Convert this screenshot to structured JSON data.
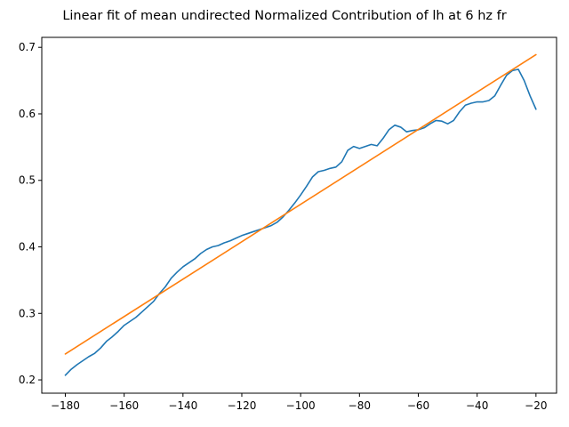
{
  "chart_data": {
    "type": "line",
    "title": "Linear fit of mean undirected Normalized Contribution of lh at 6 hz fr",
    "xlabel": "",
    "ylabel": "",
    "xlim": [
      -188,
      -13
    ],
    "ylim": [
      0.18,
      0.715
    ],
    "xticks": [
      -180,
      -160,
      -140,
      -120,
      -100,
      -80,
      -60,
      -40,
      -20
    ],
    "yticks": [
      0.2,
      0.3,
      0.4,
      0.5,
      0.6,
      0.7
    ],
    "xtick_labels": [
      "−180",
      "−160",
      "−140",
      "−120",
      "−100",
      "−80",
      "−60",
      "−40",
      "−20"
    ],
    "ytick_labels": [
      "0.2",
      "0.3",
      "0.4",
      "0.5",
      "0.6",
      "0.7"
    ],
    "grid": false,
    "series": [
      {
        "color": "#1f77b4",
        "x": [
          -180,
          -178,
          -176,
          -174,
          -172,
          -170,
          -168,
          -166,
          -164,
          -162,
          -160,
          -158,
          -156,
          -154,
          -152,
          -150,
          -148,
          -146,
          -144,
          -142,
          -140,
          -138,
          -136,
          -134,
          -132,
          -130,
          -128,
          -126,
          -124,
          -122,
          -120,
          -118,
          -116,
          -114,
          -112,
          -110,
          -108,
          -106,
          -104,
          -102,
          -100,
          -98,
          -96,
          -94,
          -92,
          -90,
          -88,
          -86,
          -84,
          -82,
          -80,
          -78,
          -76,
          -74,
          -72,
          -70,
          -68,
          -66,
          -64,
          -62,
          -60,
          -58,
          -56,
          -54,
          -52,
          -50,
          -48,
          -46,
          -44,
          -42,
          -40,
          -38,
          -36,
          -34,
          -32,
          -30,
          -28,
          -26,
          -24,
          -22,
          -20
        ],
        "y": [
          0.207,
          0.216,
          0.223,
          0.229,
          0.235,
          0.24,
          0.248,
          0.258,
          0.265,
          0.273,
          0.282,
          0.288,
          0.294,
          0.302,
          0.31,
          0.318,
          0.33,
          0.34,
          0.353,
          0.362,
          0.37,
          0.376,
          0.382,
          0.39,
          0.396,
          0.4,
          0.402,
          0.406,
          0.409,
          0.413,
          0.417,
          0.42,
          0.423,
          0.426,
          0.429,
          0.432,
          0.437,
          0.445,
          0.455,
          0.466,
          0.478,
          0.491,
          0.505,
          0.513,
          0.515,
          0.518,
          0.52,
          0.528,
          0.545,
          0.551,
          0.548,
          0.551,
          0.554,
          0.552,
          0.563,
          0.576,
          0.583,
          0.58,
          0.573,
          0.575,
          0.576,
          0.579,
          0.585,
          0.59,
          0.589,
          0.585,
          0.59,
          0.603,
          0.613,
          0.616,
          0.618,
          0.618,
          0.62,
          0.627,
          0.643,
          0.658,
          0.665,
          0.667,
          0.65,
          0.627,
          0.607
        ]
      },
      {
        "color": "#ff7f0e",
        "x": [
          -180,
          -20
        ],
        "y": [
          0.239,
          0.689
        ]
      }
    ]
  }
}
